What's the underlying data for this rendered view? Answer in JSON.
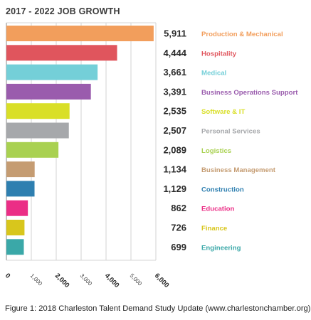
{
  "title": "2017 - 2022 JOB GROWTH",
  "caption": "Figure 1: 2018 Charleston Talent Demand Study Update (www.charlestonchamber.org)",
  "chart_data": {
    "type": "bar",
    "orientation": "horizontal",
    "title": "2017 - 2022 JOB GROWTH",
    "categories": [
      "Production & Mechanical",
      "Hospitality",
      "Medical",
      "Business Operations Support",
      "Software & IT",
      "Personal Services",
      "Logistics",
      "Business Management",
      "Construction",
      "Education",
      "Finance",
      "Engineering"
    ],
    "values": [
      5911,
      4444,
      3661,
      3391,
      2535,
      2507,
      2089,
      1134,
      1129,
      862,
      726,
      699
    ],
    "value_labels": [
      "5,911",
      "4,444",
      "3,661",
      "3,391",
      "2,535",
      "2,507",
      "2,089",
      "1,134",
      "1,129",
      "862",
      "726",
      "699"
    ],
    "colors": [
      "#F29E5C",
      "#E0555D",
      "#74CFD8",
      "#9A5CAD",
      "#D9DF27",
      "#A6A8AB",
      "#A9D151",
      "#C59C72",
      "#2E7FB0",
      "#EB2E86",
      "#D8C61C",
      "#3AA8A8"
    ],
    "xlim": [
      0,
      6000
    ],
    "xticks": [
      "0",
      "1,000",
      "2,000",
      "3,000",
      "4,000",
      "5,000",
      "6,000"
    ],
    "grid": true
  }
}
